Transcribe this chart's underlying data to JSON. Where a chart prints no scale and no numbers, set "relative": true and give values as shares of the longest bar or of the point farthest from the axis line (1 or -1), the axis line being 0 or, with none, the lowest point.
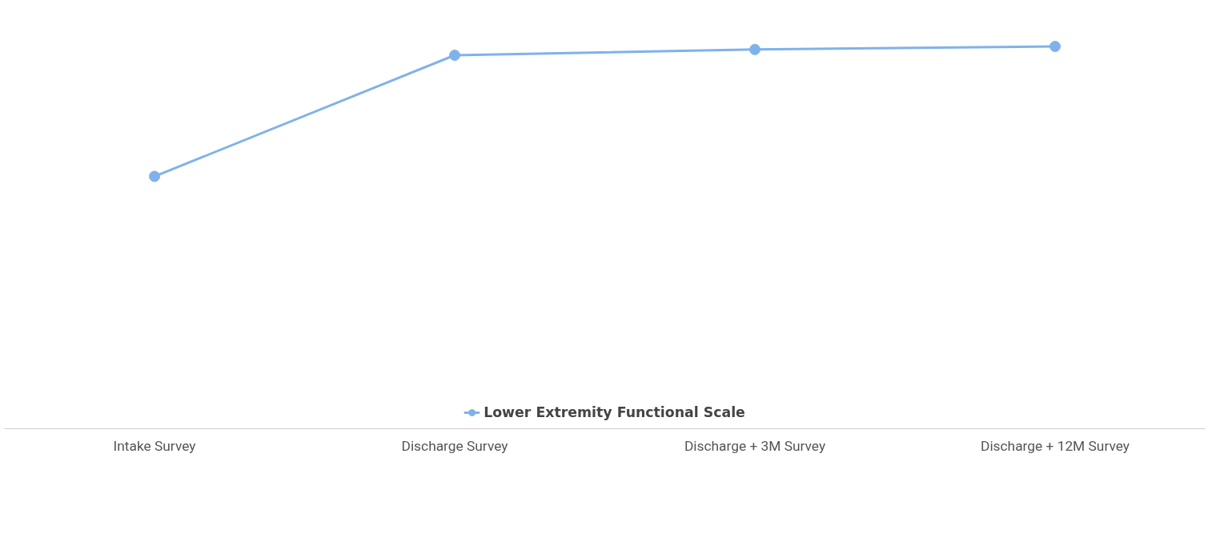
{
  "chart_data": {
    "type": "line",
    "relative": true,
    "categories": [
      "Intake Survey",
      "Discharge Survey",
      "Discharge + 3M Survey",
      "Discharge + 12M Survey"
    ],
    "series": [
      {
        "name": "Lower Extremity Functional Scale",
        "color": "#7fb2ea",
        "values": [
          0.66,
          0.977,
          0.992,
          1
        ]
      }
    ],
    "marker": "circle",
    "line_style": "solid",
    "legend": "bottom",
    "grid": false
  }
}
